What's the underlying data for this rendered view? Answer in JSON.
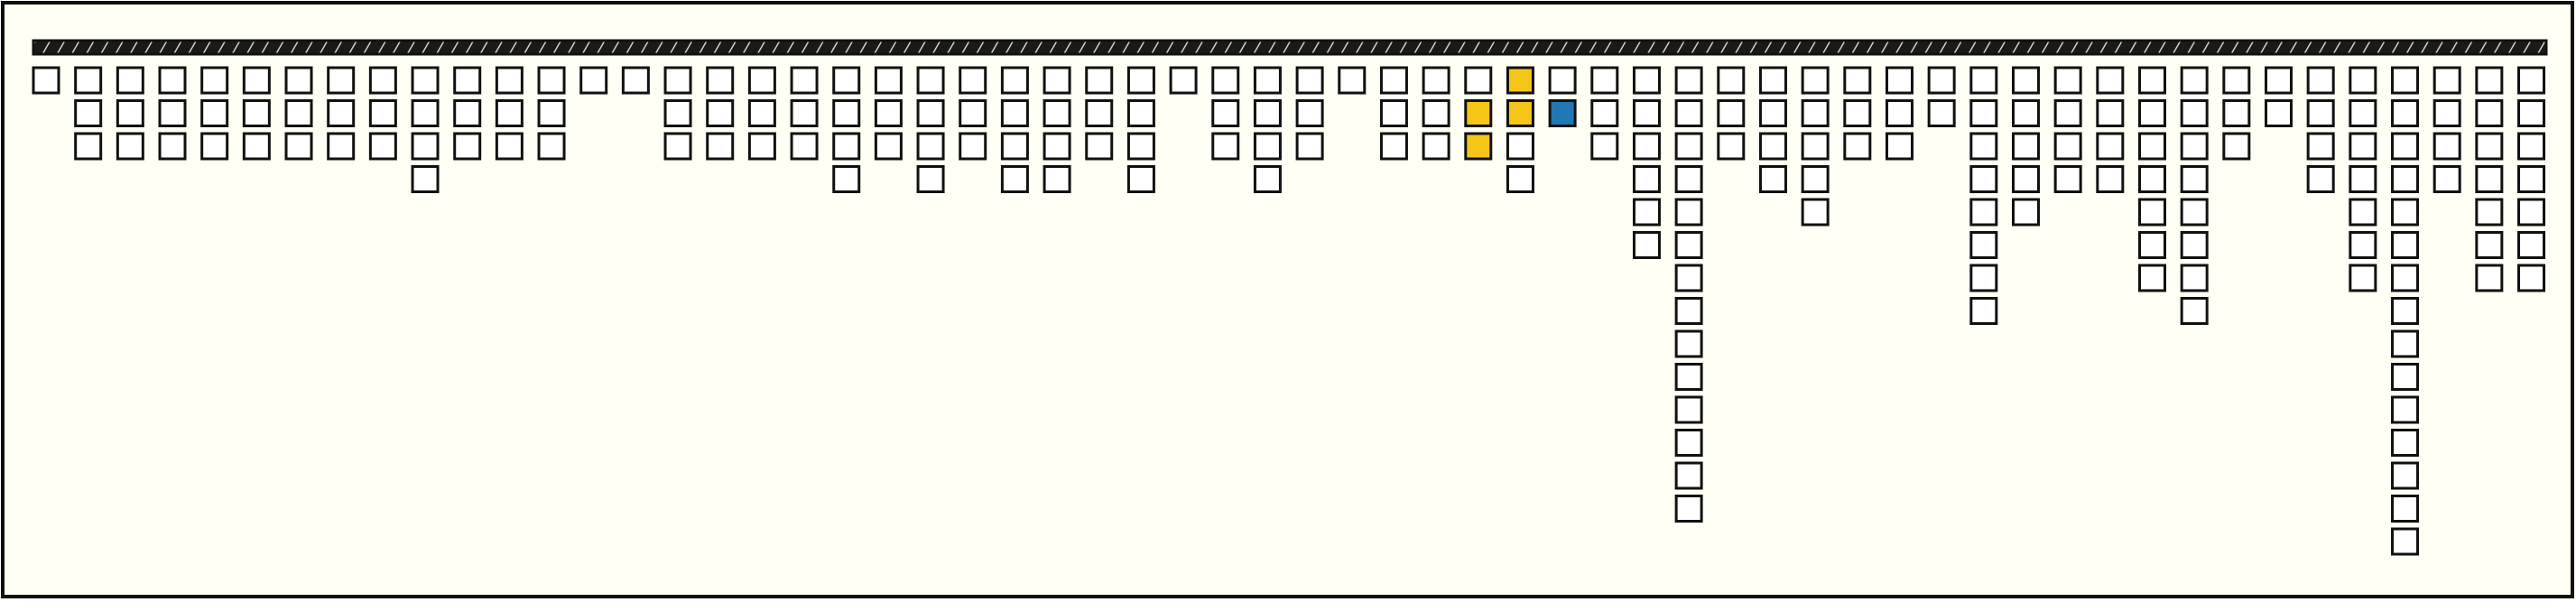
{
  "columns": [
    1,
    3,
    3,
    3,
    3,
    3,
    3,
    3,
    3,
    4,
    3,
    3,
    3,
    1,
    1,
    3,
    3,
    3,
    3,
    4,
    3,
    4,
    3,
    4,
    4,
    3,
    4,
    1,
    3,
    4,
    3,
    1,
    3,
    3,
    3,
    4,
    2,
    3,
    6,
    14,
    3,
    4,
    5,
    3,
    3,
    2,
    8,
    5,
    4,
    4,
    7,
    8,
    3,
    2,
    4,
    7,
    15,
    4,
    7,
    7
  ],
  "highlights": [
    {
      "column": 34,
      "row": 1,
      "color": "#f5c518"
    },
    {
      "column": 34,
      "row": 2,
      "color": "#f5c518"
    },
    {
      "column": 35,
      "row": 0,
      "color": "#f5c518"
    },
    {
      "column": 35,
      "row": 1,
      "color": "#f5c518"
    },
    {
      "column": 36,
      "row": 1,
      "color": "#1f77b4"
    }
  ]
}
